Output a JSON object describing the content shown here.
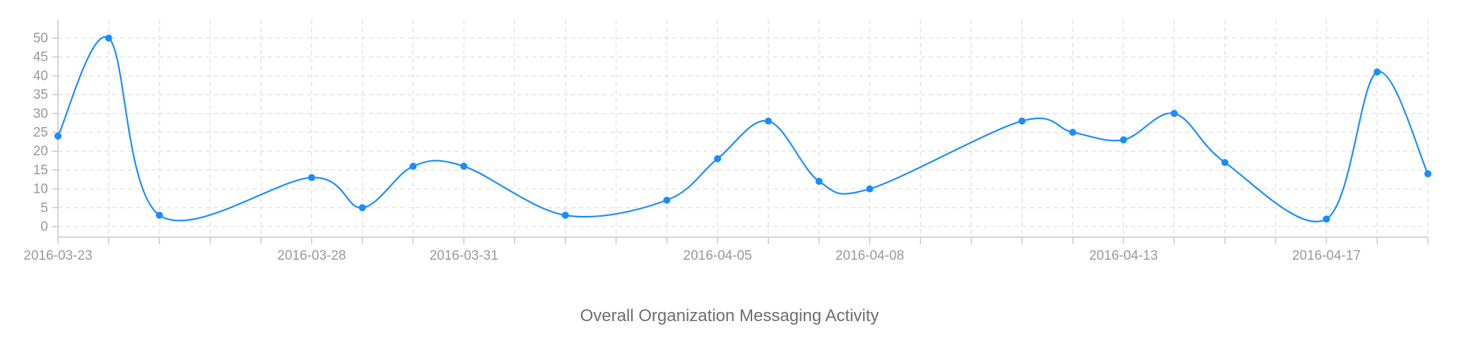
{
  "chart_data": {
    "type": "line",
    "title": "Overall Organization Messaging Activity",
    "xlabel": "",
    "ylabel": "",
    "x_type": "date",
    "xlim": [
      "2016-03-23",
      "2016-04-19"
    ],
    "ylim": [
      0,
      55
    ],
    "y_ticks": [
      0,
      5,
      10,
      15,
      20,
      25,
      30,
      35,
      40,
      45,
      50
    ],
    "x_tick_labels": [
      "2016-03-23",
      "2016-03-28",
      "2016-03-31",
      "2016-04-05",
      "2016-04-08",
      "2016-04-13",
      "2016-04-17"
    ],
    "grid": true,
    "legend": "none",
    "colors": {
      "line": "#1a8cff",
      "point": "#1a8cff",
      "grid": "#e3e3e3",
      "axis": "#c8c8c8",
      "tick_text": "#999999",
      "title_text": "#6e6e6e"
    },
    "series": [
      {
        "points": [
          {
            "x": "2016-03-23",
            "y": 24
          },
          {
            "x": "2016-03-24",
            "y": 50
          },
          {
            "x": "2016-03-25",
            "y": 3
          },
          {
            "x": "2016-03-28",
            "y": 13
          },
          {
            "x": "2016-03-29",
            "y": 5
          },
          {
            "x": "2016-03-30",
            "y": 16
          },
          {
            "x": "2016-03-31",
            "y": 16
          },
          {
            "x": "2016-04-02",
            "y": 3
          },
          {
            "x": "2016-04-04",
            "y": 7
          },
          {
            "x": "2016-04-05",
            "y": 18
          },
          {
            "x": "2016-04-06",
            "y": 28
          },
          {
            "x": "2016-04-07",
            "y": 12
          },
          {
            "x": "2016-04-08",
            "y": 10
          },
          {
            "x": "2016-04-11",
            "y": 28
          },
          {
            "x": "2016-04-12",
            "y": 25
          },
          {
            "x": "2016-04-13",
            "y": 23
          },
          {
            "x": "2016-04-14",
            "y": 30
          },
          {
            "x": "2016-04-15",
            "y": 17
          },
          {
            "x": "2016-04-17",
            "y": 2
          },
          {
            "x": "2016-04-18",
            "y": 41
          },
          {
            "x": "2016-04-19",
            "y": 14
          }
        ]
      }
    ]
  }
}
